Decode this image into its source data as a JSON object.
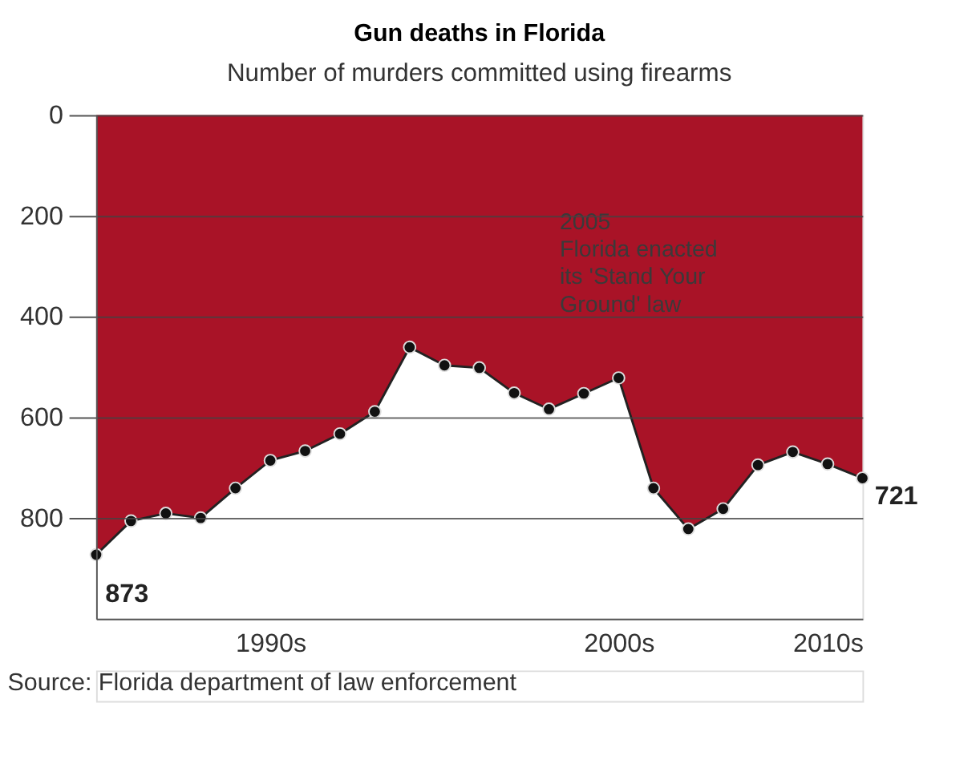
{
  "chart_data": {
    "type": "area",
    "title": "Gun deaths in Florida",
    "subtitle": "Number of murders committed using firearms",
    "categories": [
      null,
      null,
      null,
      null,
      null,
      "1990s",
      null,
      null,
      null,
      null,
      null,
      null,
      null,
      null,
      null,
      "2000s",
      null,
      null,
      null,
      null,
      null,
      "2010s",
      null
    ],
    "series": [
      {
        "color": "#a91327",
        "values": [
          873,
          806,
          791,
          800,
          741,
          686,
          667,
          633,
          589,
          461,
          497,
          502,
          552,
          584,
          553,
          522,
          741,
          822,
          782,
          695,
          669,
          693,
          721
        ],
        "value_labels": [
          "873",
          null,
          null,
          null,
          null,
          null,
          null,
          null,
          null,
          null,
          null,
          null,
          null,
          null,
          null,
          null,
          null,
          null,
          null,
          null,
          null,
          null,
          "721"
        ]
      }
    ],
    "ylim": [
      1000,
      0
    ],
    "yticks": [
      0,
      200,
      400,
      600,
      800
    ],
    "grid": "y",
    "marker": "circle",
    "line_style": "solid",
    "annotations": [
      "2005\nFlorida enacted\nits 'Stand Your\nGround' law",
      "Source: Florida department of law enforcement"
    ]
  }
}
